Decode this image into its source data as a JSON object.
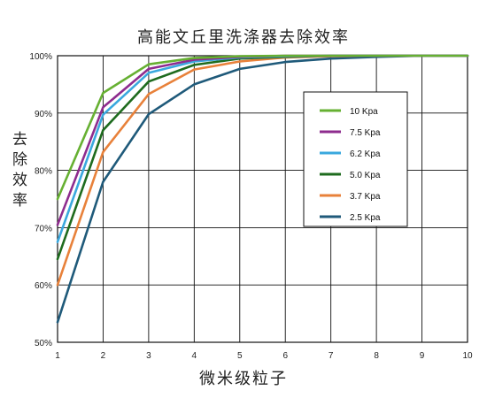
{
  "chart_data": {
    "type": "line",
    "title": "高能文丘里洗涤器去除效率",
    "xlabel": "微米级粒子",
    "ylabel": "去除效率",
    "x": [
      1,
      2,
      3,
      4,
      5,
      6,
      7,
      8,
      9,
      10
    ],
    "xlim": [
      1,
      10
    ],
    "ylim": [
      50,
      100
    ],
    "x_ticks": [
      "1",
      "2",
      "3",
      "4",
      "5",
      "6",
      "7",
      "8",
      "9",
      "10"
    ],
    "y_ticks": [
      {
        "value": 50,
        "label": "50%"
      },
      {
        "value": 60,
        "label": "60%"
      },
      {
        "value": 70,
        "label": "70%"
      },
      {
        "value": 80,
        "label": "80%"
      },
      {
        "value": 90,
        "label": "90%"
      },
      {
        "value": 100,
        "label": "100%"
      }
    ],
    "grid": true,
    "legend_position": "right",
    "series": [
      {
        "name": "10  Kpa",
        "color": "#66b032",
        "values": [
          75,
          93.5,
          98.5,
          99.6,
          99.9,
          100,
          100,
          100,
          100,
          100
        ]
      },
      {
        "name": "7.5 Kpa",
        "color": "#8e2c8e",
        "values": [
          70.5,
          91,
          97.7,
          99.3,
          99.8,
          100,
          100,
          100,
          100,
          100
        ]
      },
      {
        "name": "6.2 Kpa",
        "color": "#3aa8de",
        "values": [
          67.5,
          89.7,
          97,
          99,
          99.7,
          99.9,
          100,
          100,
          100,
          100
        ]
      },
      {
        "name": "5.0 Kpa",
        "color": "#1e6b1e",
        "values": [
          64.5,
          87,
          95.5,
          98.4,
          99.5,
          99.8,
          100,
          100,
          100,
          100
        ]
      },
      {
        "name": "3.7 Kpa",
        "color": "#e8813a",
        "values": [
          60,
          83.2,
          93.3,
          97.6,
          99,
          99.7,
          99.9,
          100,
          100,
          100
        ]
      },
      {
        "name": "2.5 Kpa",
        "color": "#1f5a7a",
        "values": [
          53.5,
          78,
          89.8,
          95,
          97.7,
          98.9,
          99.5,
          99.8,
          100,
          100
        ]
      }
    ]
  }
}
